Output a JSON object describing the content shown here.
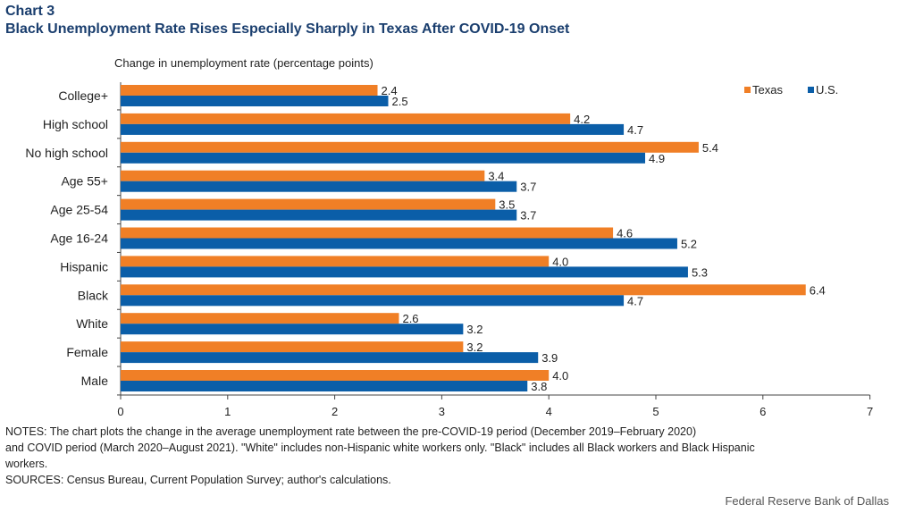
{
  "header": {
    "chart_number": "Chart 3",
    "title": "Black Unemployment Rate Rises Especially Sharply in Texas After COVID-19 Onset"
  },
  "chart_data": {
    "type": "bar",
    "orientation": "horizontal",
    "title": "Black Unemployment Rate Rises Especially Sharply in Texas After COVID-19 Onset",
    "ylabel": "Change in unemployment rate (percentage points)",
    "xlabel": "",
    "categories": [
      "College+",
      "High school",
      "No high school",
      "Age  55+",
      "Age 25-54",
      "Age 16-24",
      "Hispanic",
      "Black",
      "White",
      "Female",
      "Male"
    ],
    "series": [
      {
        "name": "Texas",
        "color": "#f07f26",
        "values": [
          2.4,
          4.2,
          5.4,
          3.4,
          3.5,
          4.6,
          4.0,
          6.4,
          2.6,
          3.2,
          4.0
        ]
      },
      {
        "name": "U.S.",
        "color": "#0b5ea8",
        "values": [
          2.5,
          4.7,
          4.9,
          3.7,
          3.7,
          5.2,
          5.3,
          4.7,
          3.2,
          3.9,
          3.8
        ]
      }
    ],
    "value_labels": [
      [
        "2.4",
        "2.5"
      ],
      [
        "4.2",
        "4.7"
      ],
      [
        "5.4",
        "4.9"
      ],
      [
        "3.4",
        "3.7"
      ],
      [
        "3.5",
        "3.7"
      ],
      [
        "4.6",
        "5.2"
      ],
      [
        "4.0",
        "5.3"
      ],
      [
        "6.4",
        "4.7"
      ],
      [
        "2.6",
        "3.2"
      ],
      [
        "3.2",
        "3.9"
      ],
      [
        "4.0",
        "3.8"
      ]
    ],
    "xlim": [
      0,
      7
    ],
    "xticks": [
      "0",
      "1",
      "2",
      "3",
      "4",
      "5",
      "6",
      "7"
    ],
    "grid": false,
    "legend_position": "top-right"
  },
  "notes": {
    "line1": "NOTES: The chart plots the change in the average unemployment rate between the pre-COVID-19 period (December 2019–February 2020)",
    "line2": "and COVID period (March 2020–August 2021). \"White\" includes non-Hispanic white workers only. \"Black\" includes all Black workers and Black Hispanic",
    "line3": "workers.",
    "sources": "SOURCES: Census Bureau, Current Population Survey; author's calculations."
  },
  "credit": "Federal Reserve Bank of Dallas"
}
